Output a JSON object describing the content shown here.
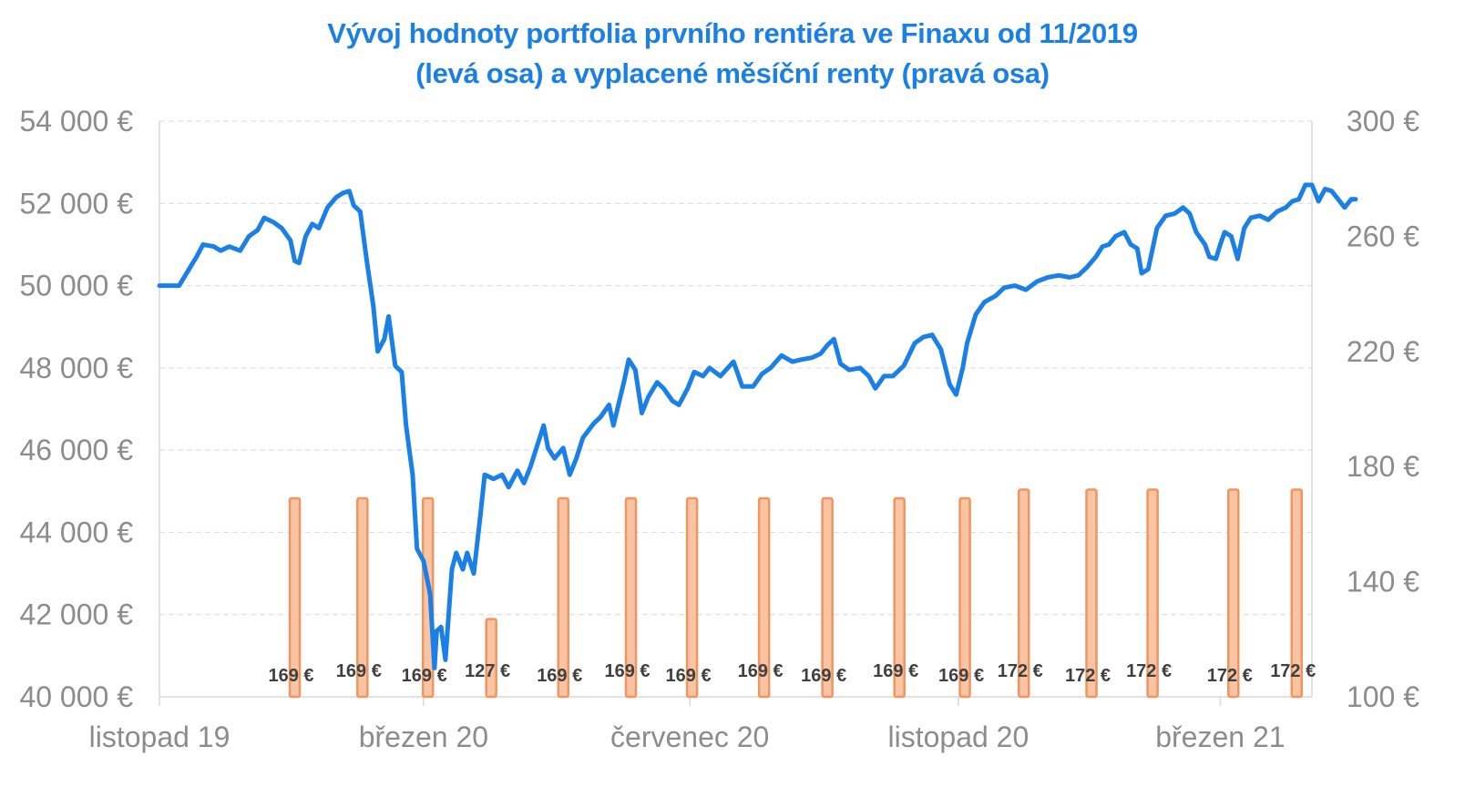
{
  "chart_data": {
    "type": "bar+line",
    "title": "Vývoj hodnoty portfolia prvního rentiéra ve Finaxu od 11/2019",
    "subtitle": "(levá osa) a vyplacené měsíční renty (pravá osa)",
    "colors": {
      "title": "#1a7fe6",
      "line": "#1a7fe6",
      "bar_fill": "#f8c4a4",
      "bar_stroke": "#f0955f",
      "axis_text": "#8c8c8c",
      "grid": "#d9d9d9"
    },
    "y_left": {
      "range": [
        40000,
        54000
      ],
      "ticks": [
        "40 000 €",
        "42 000 €",
        "44 000 €",
        "46 000 €",
        "48 000 €",
        "50 000 €",
        "52 000 €",
        "54 000 €"
      ]
    },
    "y_right": {
      "range": [
        100,
        300
      ],
      "ticks": [
        "100 €",
        "140 €",
        "180 €",
        "220 €",
        "260 €",
        "300 €"
      ]
    },
    "x_axis": {
      "range": [
        "2019-11-01",
        "2021-04-12"
      ],
      "tick_labels": [
        "listopad 19",
        "březen 20",
        "červenec 20",
        "listopad 20",
        "březen 21"
      ],
      "tick_dates": [
        "2019-11-01",
        "2020-03-01",
        "2020-07-01",
        "2020-11-01",
        "2021-03-01"
      ]
    },
    "grid": true,
    "bars": {
      "name": "vyplacené měsíční renty",
      "axis": "right",
      "dates": [
        "2020-01-02",
        "2020-02-02",
        "2020-03-03",
        "2020-04-01",
        "2020-05-04",
        "2020-06-04",
        "2020-07-02",
        "2020-08-04",
        "2020-09-02",
        "2020-10-05",
        "2020-11-04",
        "2020-12-01",
        "2021-01-01",
        "2021-01-29",
        "2021-03-07",
        "2021-04-05"
      ],
      "values": [
        169,
        169,
        169,
        127,
        169,
        169,
        169,
        169,
        169,
        169,
        169,
        172,
        172,
        172,
        172,
        172
      ],
      "labels": [
        "169 €",
        "169 €",
        "169 €",
        "127 €",
        "169 €",
        "169 €",
        "169 €",
        "169 €",
        "169 €",
        "169 €",
        "169 €",
        "172 €",
        "172 €",
        "172 €",
        "172 €",
        "172 €"
      ]
    },
    "line": {
      "name": "hodnota portfolia",
      "axis": "left",
      "points": [
        [
          "2019-11-01",
          50000
        ],
        [
          "2019-11-10",
          50000
        ],
        [
          "2019-11-14",
          50350
        ],
        [
          "2019-11-18",
          50700
        ],
        [
          "2019-11-21",
          51000
        ],
        [
          "2019-11-26",
          50950
        ],
        [
          "2019-11-29",
          50850
        ],
        [
          "2019-12-03",
          50950
        ],
        [
          "2019-12-08",
          50850
        ],
        [
          "2019-12-12",
          51200
        ],
        [
          "2019-12-16",
          51350
        ],
        [
          "2019-12-19",
          51650
        ],
        [
          "2019-12-23",
          51550
        ],
        [
          "2019-12-27",
          51400
        ],
        [
          "2019-12-31",
          51100
        ],
        [
          "2020-01-02",
          50600
        ],
        [
          "2020-01-04",
          50550
        ],
        [
          "2020-01-07",
          51200
        ],
        [
          "2020-01-10",
          51500
        ],
        [
          "2020-01-13",
          51400
        ],
        [
          "2020-01-17",
          51900
        ],
        [
          "2020-01-21",
          52150
        ],
        [
          "2020-01-24",
          52250
        ],
        [
          "2020-01-27",
          52300
        ],
        [
          "2020-01-29",
          51950
        ],
        [
          "2020-02-01",
          51800
        ],
        [
          "2020-02-04",
          50600
        ],
        [
          "2020-02-07",
          49500
        ],
        [
          "2020-02-09",
          48400
        ],
        [
          "2020-02-12",
          48700
        ],
        [
          "2020-02-14",
          49250
        ],
        [
          "2020-02-17",
          48050
        ],
        [
          "2020-02-20",
          47900
        ],
        [
          "2020-02-22",
          46600
        ],
        [
          "2020-02-25",
          45400
        ],
        [
          "2020-02-27",
          43600
        ],
        [
          "2020-03-01",
          43300
        ],
        [
          "2020-03-04",
          42500
        ],
        [
          "2020-03-06",
          40700
        ],
        [
          "2020-03-07",
          41600
        ],
        [
          "2020-03-09",
          41700
        ],
        [
          "2020-03-11",
          40900
        ],
        [
          "2020-03-14",
          43100
        ],
        [
          "2020-03-16",
          43500
        ],
        [
          "2020-03-19",
          43100
        ],
        [
          "2020-03-21",
          43500
        ],
        [
          "2020-03-24",
          43000
        ],
        [
          "2020-03-27",
          44400
        ],
        [
          "2020-03-29",
          45400
        ],
        [
          "2020-04-02",
          45300
        ],
        [
          "2020-04-06",
          45400
        ],
        [
          "2020-04-09",
          45100
        ],
        [
          "2020-04-13",
          45500
        ],
        [
          "2020-04-16",
          45200
        ],
        [
          "2020-04-19",
          45600
        ],
        [
          "2020-04-22",
          46100
        ],
        [
          "2020-04-25",
          46600
        ],
        [
          "2020-04-27",
          46050
        ],
        [
          "2020-04-30",
          45800
        ],
        [
          "2020-05-04",
          46050
        ],
        [
          "2020-05-07",
          45400
        ],
        [
          "2020-05-10",
          45800
        ],
        [
          "2020-05-13",
          46300
        ],
        [
          "2020-05-18",
          46650
        ],
        [
          "2020-05-21",
          46800
        ],
        [
          "2020-05-25",
          47100
        ],
        [
          "2020-05-27",
          46600
        ],
        [
          "2020-06-01",
          47700
        ],
        [
          "2020-06-03",
          48200
        ],
        [
          "2020-06-06",
          47950
        ],
        [
          "2020-06-09",
          46900
        ],
        [
          "2020-06-12",
          47300
        ],
        [
          "2020-06-16",
          47650
        ],
        [
          "2020-06-19",
          47500
        ],
        [
          "2020-06-23",
          47200
        ],
        [
          "2020-06-26",
          47100
        ],
        [
          "2020-06-30",
          47500
        ],
        [
          "2020-07-03",
          47900
        ],
        [
          "2020-07-07",
          47800
        ],
        [
          "2020-07-10",
          48000
        ],
        [
          "2020-07-15",
          47800
        ],
        [
          "2020-07-21",
          48150
        ],
        [
          "2020-07-25",
          47550
        ],
        [
          "2020-07-30",
          47550
        ],
        [
          "2020-08-03",
          47850
        ],
        [
          "2020-08-07",
          48000
        ],
        [
          "2020-08-12",
          48300
        ],
        [
          "2020-08-17",
          48150
        ],
        [
          "2020-08-21",
          48200
        ],
        [
          "2020-08-26",
          48250
        ],
        [
          "2020-08-30",
          48350
        ],
        [
          "2020-09-02",
          48550
        ],
        [
          "2020-09-05",
          48700
        ],
        [
          "2020-09-08",
          48100
        ],
        [
          "2020-09-12",
          47950
        ],
        [
          "2020-09-17",
          48000
        ],
        [
          "2020-09-21",
          47800
        ],
        [
          "2020-09-24",
          47500
        ],
        [
          "2020-09-28",
          47800
        ],
        [
          "2020-10-02",
          47800
        ],
        [
          "2020-10-07",
          48050
        ],
        [
          "2020-10-12",
          48600
        ],
        [
          "2020-10-16",
          48750
        ],
        [
          "2020-10-20",
          48800
        ],
        [
          "2020-10-24",
          48450
        ],
        [
          "2020-10-28",
          47600
        ],
        [
          "2020-10-31",
          47350
        ],
        [
          "2020-11-03",
          48000
        ],
        [
          "2020-11-05",
          48600
        ],
        [
          "2020-11-09",
          49300
        ],
        [
          "2020-11-13",
          49600
        ],
        [
          "2020-11-18",
          49750
        ],
        [
          "2020-11-22",
          49950
        ],
        [
          "2020-11-27",
          50000
        ],
        [
          "2020-12-02",
          49900
        ],
        [
          "2020-12-07",
          50100
        ],
        [
          "2020-12-12",
          50200
        ],
        [
          "2020-12-17",
          50250
        ],
        [
          "2020-12-22",
          50200
        ],
        [
          "2020-12-26",
          50250
        ],
        [
          "2020-12-30",
          50450
        ],
        [
          "2021-01-03",
          50700
        ],
        [
          "2021-01-06",
          50950
        ],
        [
          "2021-01-09",
          51000
        ],
        [
          "2021-01-12",
          51200
        ],
        [
          "2021-01-16",
          51300
        ],
        [
          "2021-01-19",
          51000
        ],
        [
          "2021-01-22",
          50900
        ],
        [
          "2021-01-24",
          50300
        ],
        [
          "2021-01-27",
          50400
        ],
        [
          "2021-01-31",
          51400
        ],
        [
          "2021-02-04",
          51700
        ],
        [
          "2021-02-08",
          51750
        ],
        [
          "2021-02-12",
          51900
        ],
        [
          "2021-02-15",
          51750
        ],
        [
          "2021-02-18",
          51300
        ],
        [
          "2021-02-22",
          51000
        ],
        [
          "2021-02-24",
          50700
        ],
        [
          "2021-02-27",
          50650
        ],
        [
          "2021-03-01",
          51000
        ],
        [
          "2021-03-03",
          51300
        ],
        [
          "2021-03-06",
          51200
        ],
        [
          "2021-03-09",
          50650
        ],
        [
          "2021-03-12",
          51400
        ],
        [
          "2021-03-15",
          51650
        ],
        [
          "2021-03-19",
          51700
        ],
        [
          "2021-03-23",
          51600
        ],
        [
          "2021-03-27",
          51800
        ],
        [
          "2021-03-31",
          51900
        ],
        [
          "2021-04-03",
          52050
        ],
        [
          "2021-04-06",
          52100
        ],
        [
          "2021-04-09",
          52450
        ],
        [
          "2021-04-12",
          52450
        ],
        [
          "2021-04-15",
          52050
        ],
        [
          "2021-04-18",
          52350
        ],
        [
          "2021-04-21",
          52300
        ],
        [
          "2021-04-24",
          52100
        ],
        [
          "2021-04-27",
          51900
        ],
        [
          "2021-04-30",
          52100
        ],
        [
          "2021-05-02",
          52100
        ]
      ]
    }
  }
}
